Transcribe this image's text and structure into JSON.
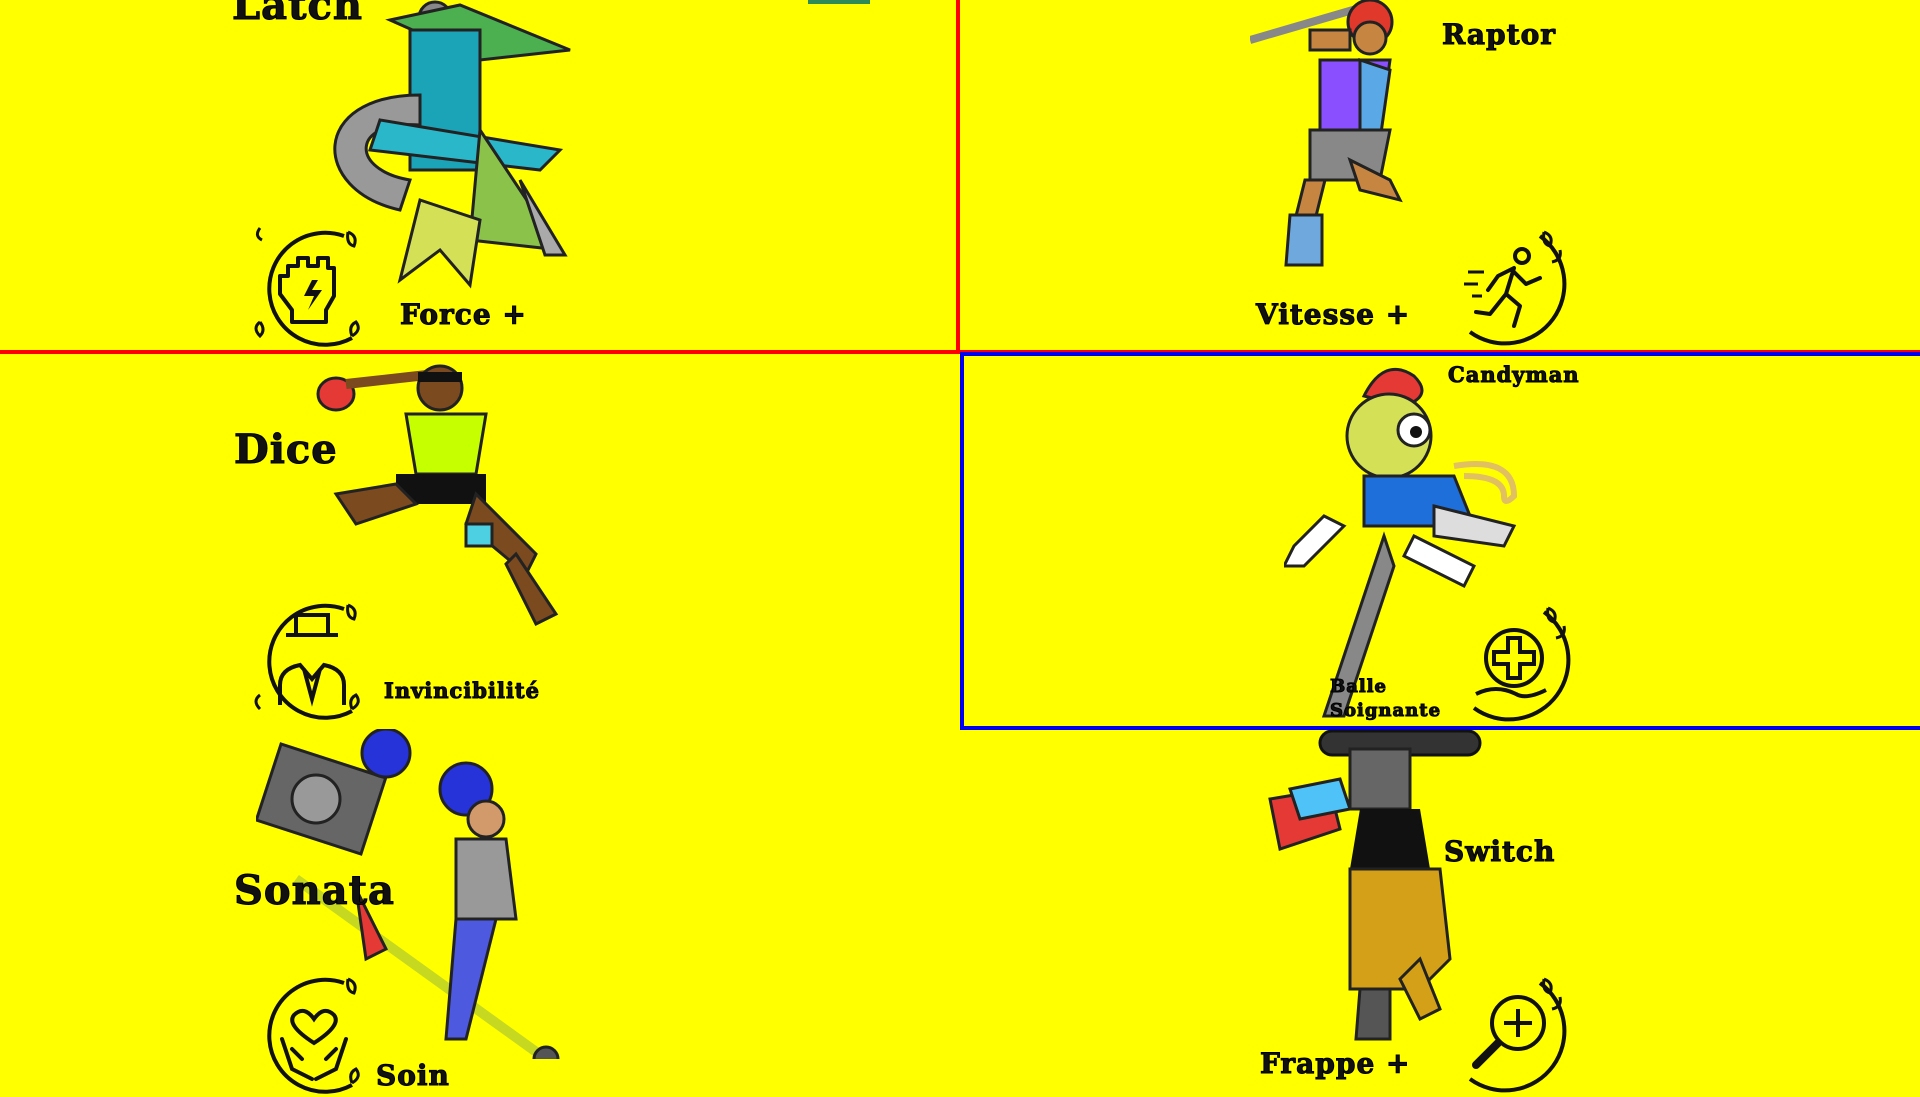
{
  "cards": {
    "latch": {
      "name": "Latch",
      "ability": "Force +",
      "ability_icon": "fist-lightning-icon"
    },
    "raptor": {
      "name": "Raptor",
      "ability": "Vitesse +",
      "ability_icon": "running-man-icon"
    },
    "dice": {
      "name": "Dice",
      "ability": "Invincibilité",
      "ability_icon": "invisible-man-icon"
    },
    "candyman": {
      "name": "Candyman",
      "ability_line1": "Balle",
      "ability_line2": "Soignante",
      "ability_icon": "healing-hand-icon"
    },
    "sonata": {
      "name": "Sonata",
      "ability": "Soin",
      "ability_icon": "heart-hands-icon"
    },
    "switch": {
      "name": "Switch",
      "ability": "Frappe +",
      "ability_icon": "magnifier-plus-icon"
    }
  },
  "colors": {
    "background": "#ffff00",
    "selected_border_red": "#ff0000",
    "selected_border_blue": "#0000ee"
  }
}
